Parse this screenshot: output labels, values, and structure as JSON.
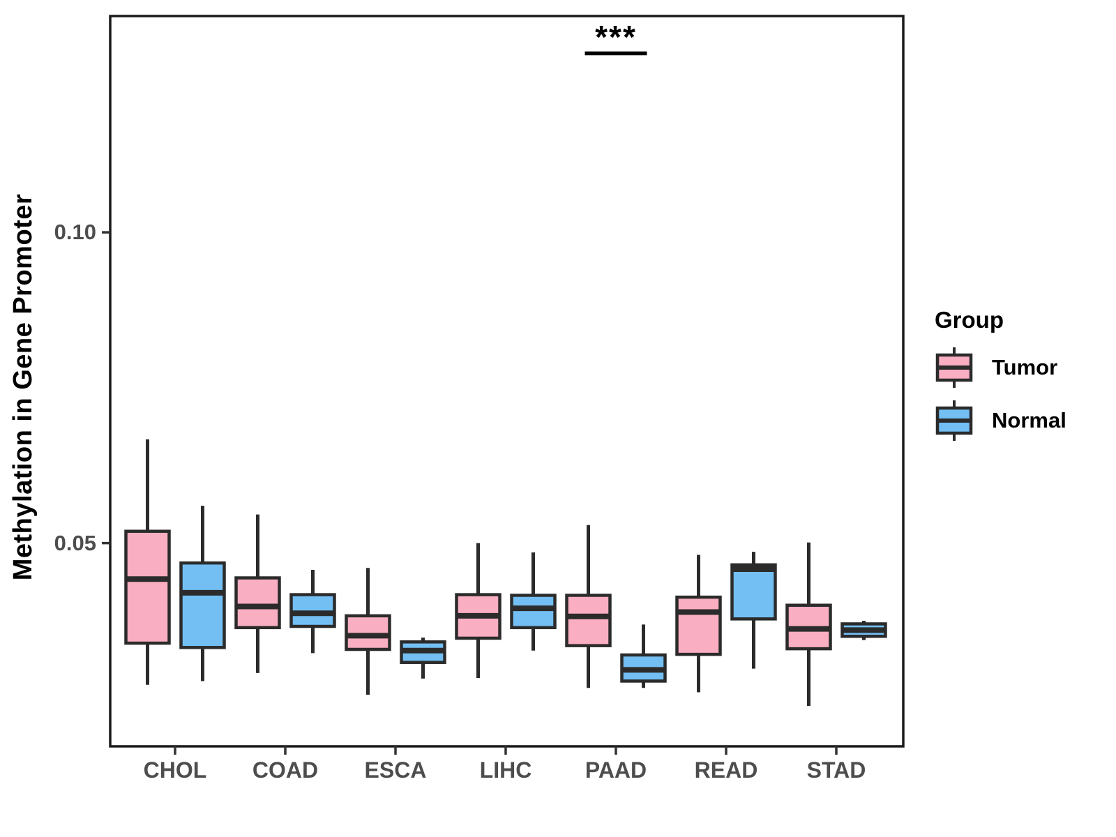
{
  "figure": {
    "background": "#FFFFFF"
  },
  "colors": {
    "tumor": "#FAAEC1",
    "normal": "#73BFF4",
    "box_stroke": "#2B2B2B",
    "panel_border": "#1A1A1A",
    "axis_text": "#4D4D4D",
    "title_text": "#000000"
  },
  "legend": {
    "title": "Group",
    "items": [
      {
        "label": "Tumor",
        "color_key": "tumor"
      },
      {
        "label": "Normal",
        "color_key": "normal"
      }
    ]
  },
  "significance": {
    "label": "***",
    "category": "PAAD"
  },
  "chart_data": {
    "type": "boxplot",
    "title": "",
    "xlabel": "",
    "ylabel": "Methylation in Gene Promoter",
    "categories": [
      "CHOL",
      "COAD",
      "ESCA",
      "LIHC",
      "PAAD",
      "READ",
      "STAD"
    ],
    "ylim": [
      0.0173,
      0.1348
    ],
    "yticks": [
      {
        "value": 0.05,
        "label": "0.05"
      },
      {
        "value": 0.1,
        "label": "0.10"
      }
    ],
    "grid": false,
    "legend_position": "right",
    "series": [
      {
        "name": "Tumor",
        "boxes": [
          {
            "category": "CHOL",
            "whisker_low": 0.0272,
            "q1": 0.0339,
            "median": 0.0442,
            "q3": 0.0519,
            "whisker_high": 0.0667
          },
          {
            "category": "COAD",
            "whisker_low": 0.0291,
            "q1": 0.0364,
            "median": 0.0398,
            "q3": 0.0444,
            "whisker_high": 0.0546
          },
          {
            "category": "ESCA",
            "whisker_low": 0.0256,
            "q1": 0.0329,
            "median": 0.0351,
            "q3": 0.0383,
            "whisker_high": 0.046
          },
          {
            "category": "LIHC",
            "whisker_low": 0.0283,
            "q1": 0.0347,
            "median": 0.0383,
            "q3": 0.0417,
            "whisker_high": 0.05
          },
          {
            "category": "PAAD",
            "whisker_low": 0.0267,
            "q1": 0.0335,
            "median": 0.0382,
            "q3": 0.0416,
            "whisker_high": 0.0529
          },
          {
            "category": "READ",
            "whisker_low": 0.026,
            "q1": 0.0321,
            "median": 0.0389,
            "q3": 0.0413,
            "whisker_high": 0.0481
          },
          {
            "category": "STAD",
            "whisker_low": 0.0238,
            "q1": 0.033,
            "median": 0.0362,
            "q3": 0.04,
            "whisker_high": 0.0501
          }
        ]
      },
      {
        "name": "Normal",
        "boxes": [
          {
            "category": "CHOL",
            "whisker_low": 0.0278,
            "q1": 0.0332,
            "median": 0.042,
            "q3": 0.0468,
            "whisker_high": 0.056
          },
          {
            "category": "COAD",
            "whisker_low": 0.0323,
            "q1": 0.0366,
            "median": 0.0387,
            "q3": 0.0417,
            "whisker_high": 0.0457
          },
          {
            "category": "ESCA",
            "whisker_low": 0.0282,
            "q1": 0.0308,
            "median": 0.0327,
            "q3": 0.0341,
            "whisker_high": 0.0348
          },
          {
            "category": "LIHC",
            "whisker_low": 0.0327,
            "q1": 0.0364,
            "median": 0.0395,
            "q3": 0.0416,
            "whisker_high": 0.0485
          },
          {
            "category": "PAAD",
            "whisker_low": 0.0267,
            "q1": 0.0278,
            "median": 0.0296,
            "q3": 0.032,
            "whisker_high": 0.0369
          },
          {
            "category": "READ",
            "whisker_low": 0.0298,
            "q1": 0.0378,
            "median": 0.0458,
            "q3": 0.0465,
            "whisker_high": 0.0486
          },
          {
            "category": "STAD",
            "whisker_low": 0.0344,
            "q1": 0.035,
            "median": 0.036,
            "q3": 0.037,
            "whisker_high": 0.0375
          }
        ]
      }
    ],
    "annotations": [
      {
        "text": "***",
        "category": "PAAD",
        "spans": [
          "Tumor",
          "Normal"
        ],
        "y_value": 0.1288
      }
    ]
  }
}
